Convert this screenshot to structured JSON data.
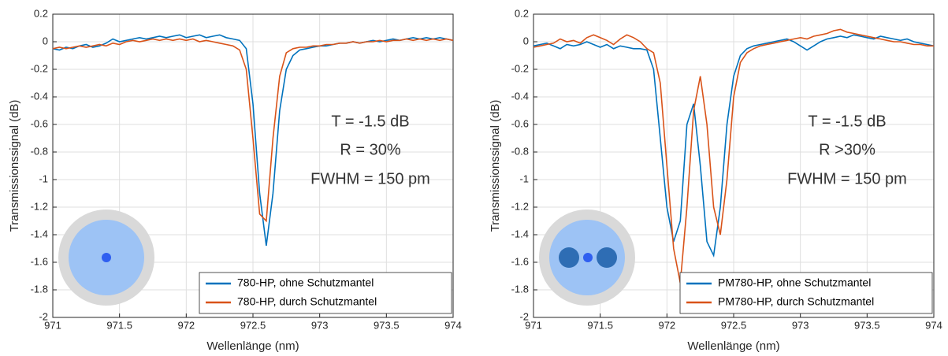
{
  "chart_data": [
    {
      "type": "line",
      "xlabel": "Wellenlänge (nm)",
      "ylabel": "Transmissionssignal (dB)",
      "x": [
        971,
        971.05,
        971.1,
        971.15,
        971.2,
        971.25,
        971.3,
        971.35,
        971.4,
        971.45,
        971.5,
        971.55,
        971.6,
        971.65,
        971.7,
        971.75,
        971.8,
        971.85,
        971.9,
        971.95,
        972,
        972.05,
        972.1,
        972.15,
        972.2,
        972.25,
        972.3,
        972.35,
        972.4,
        972.45,
        972.5,
        972.55,
        972.6,
        972.65,
        972.7,
        972.75,
        972.8,
        972.85,
        972.9,
        972.95,
        973,
        973.05,
        973.1,
        973.15,
        973.2,
        973.25,
        973.3,
        973.35,
        973.4,
        973.45,
        973.5,
        973.55,
        973.6,
        973.65,
        973.7,
        973.75,
        973.8,
        973.85,
        973.9,
        973.95,
        974
      ],
      "series": [
        {
          "name": "780-HP, ohne Schutzmantel",
          "color": "#0072bd",
          "values": [
            -0.05,
            -0.06,
            -0.04,
            -0.05,
            -0.03,
            -0.02,
            -0.04,
            -0.03,
            -0.01,
            0.02,
            0,
            0.01,
            0.02,
            0.03,
            0.02,
            0.03,
            0.04,
            0.03,
            0.04,
            0.05,
            0.03,
            0.04,
            0.05,
            0.03,
            0.04,
            0.05,
            0.03,
            0.02,
            0.01,
            -0.05,
            -0.45,
            -1.1,
            -1.48,
            -1.1,
            -0.5,
            -0.2,
            -0.1,
            -0.06,
            -0.05,
            -0.04,
            -0.03,
            -0.03,
            -0.02,
            -0.01,
            -0.01,
            0,
            -0.01,
            0,
            0.01,
            0,
            0.01,
            0.02,
            0.01,
            0.02,
            0.03,
            0.02,
            0.03,
            0.02,
            0.03,
            0.02,
            0.01
          ]
        },
        {
          "name": "780-HP, durch Schutzmantel",
          "color": "#d95319",
          "values": [
            -0.05,
            -0.04,
            -0.05,
            -0.04,
            -0.03,
            -0.04,
            -0.03,
            -0.02,
            -0.03,
            -0.01,
            -0.02,
            0,
            0.01,
            0,
            0.01,
            0.02,
            0.01,
            0.02,
            0.01,
            0.02,
            0.01,
            0.02,
            0,
            0.01,
            0,
            -0.01,
            -0.02,
            -0.03,
            -0.06,
            -0.2,
            -0.7,
            -1.25,
            -1.3,
            -0.7,
            -0.25,
            -0.08,
            -0.05,
            -0.04,
            -0.04,
            -0.03,
            -0.03,
            -0.02,
            -0.02,
            -0.01,
            -0.01,
            0,
            -0.01,
            0,
            0,
            0.01,
            0,
            0.01,
            0.01,
            0.02,
            0.01,
            0.02,
            0.01,
            0.02,
            0.01,
            0.02,
            0.01
          ]
        }
      ],
      "xlim": [
        971,
        974
      ],
      "ylim": [
        -2,
        0.2
      ],
      "xticks": [
        971,
        971.5,
        972,
        972.5,
        973,
        973.5,
        974
      ],
      "yticks": [
        0.2,
        0,
        -0.2,
        -0.4,
        -0.6,
        -0.8,
        -1,
        -1.2,
        -1.4,
        -1.6,
        -1.8,
        -2
      ],
      "grid": true,
      "legend": "lower right",
      "annotations": [
        "T = -1.5 dB",
        "R = 30%",
        "FWHM = 150 pm"
      ]
    },
    {
      "type": "line",
      "xlabel": "Wellenlänge (nm)",
      "ylabel": "Transmissionssignal (dB)",
      "x": [
        971,
        971.05,
        971.1,
        971.15,
        971.2,
        971.25,
        971.3,
        971.35,
        971.4,
        971.45,
        971.5,
        971.55,
        971.6,
        971.65,
        971.7,
        971.75,
        971.8,
        971.85,
        971.9,
        971.95,
        972,
        972.05,
        972.1,
        972.15,
        972.2,
        972.25,
        972.3,
        972.35,
        972.4,
        972.45,
        972.5,
        972.55,
        972.6,
        972.65,
        972.7,
        972.75,
        972.8,
        972.85,
        972.9,
        972.95,
        973,
        973.05,
        973.1,
        973.15,
        973.2,
        973.25,
        973.3,
        973.35,
        973.4,
        973.45,
        973.5,
        973.55,
        973.6,
        973.65,
        973.7,
        973.75,
        973.8,
        973.85,
        973.9,
        973.95,
        974
      ],
      "series": [
        {
          "name": "PM780-HP, ohne Schutzmantel",
          "color": "#0072bd",
          "values": [
            -0.03,
            -0.02,
            -0.01,
            -0.03,
            -0.05,
            -0.02,
            -0.03,
            -0.02,
            0,
            -0.02,
            -0.04,
            -0.02,
            -0.05,
            -0.03,
            -0.04,
            -0.05,
            -0.05,
            -0.06,
            -0.2,
            -0.7,
            -1.2,
            -1.45,
            -1.3,
            -0.6,
            -0.45,
            -0.9,
            -1.45,
            -1.55,
            -1.2,
            -0.6,
            -0.25,
            -0.1,
            -0.05,
            -0.03,
            -0.02,
            -0.01,
            0,
            0.01,
            0.02,
            0,
            -0.03,
            -0.06,
            -0.03,
            0,
            0.02,
            0.03,
            0.04,
            0.03,
            0.05,
            0.04,
            0.03,
            0.02,
            0.04,
            0.03,
            0.02,
            0.01,
            0.02,
            0,
            -0.01,
            -0.02,
            -0.03
          ]
        },
        {
          "name": "PM780-HP, durch Schutzmantel",
          "color": "#d95319",
          "values": [
            -0.04,
            -0.03,
            -0.02,
            -0.01,
            0.02,
            0,
            0.01,
            -0.01,
            0.03,
            0.05,
            0.03,
            0.01,
            -0.02,
            0.02,
            0.05,
            0.03,
            0,
            -0.05,
            -0.08,
            -0.3,
            -0.9,
            -1.5,
            -1.75,
            -1.2,
            -0.5,
            -0.25,
            -0.6,
            -1.2,
            -1.4,
            -1,
            -0.4,
            -0.15,
            -0.08,
            -0.05,
            -0.03,
            -0.02,
            -0.01,
            0,
            0.01,
            0.02,
            0.03,
            0.02,
            0.04,
            0.05,
            0.06,
            0.08,
            0.09,
            0.07,
            0.06,
            0.05,
            0.04,
            0.03,
            0.02,
            0.01,
            0,
            0,
            -0.01,
            -0.02,
            -0.02,
            -0.03,
            -0.03
          ]
        }
      ],
      "xlim": [
        971,
        974
      ],
      "ylim": [
        -2,
        0.2
      ],
      "xticks": [
        971,
        971.5,
        972,
        972.5,
        973,
        973.5,
        974
      ],
      "yticks": [
        0.2,
        0,
        -0.2,
        -0.4,
        -0.6,
        -0.8,
        -1,
        -1.2,
        -1.4,
        -1.6,
        -1.8,
        -2
      ],
      "grid": true,
      "legend": "lower right",
      "annotations": [
        "T = -1.5 dB",
        "R >30%",
        "FWHM = 150 pm"
      ]
    }
  ]
}
